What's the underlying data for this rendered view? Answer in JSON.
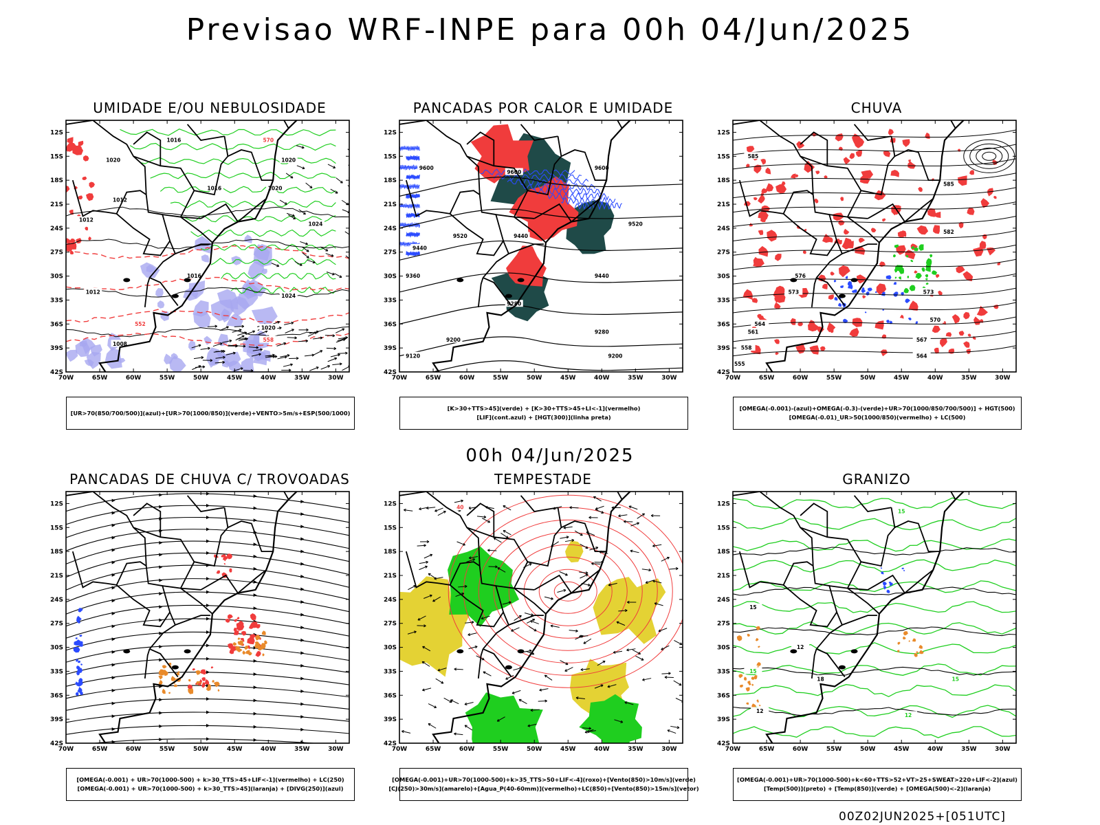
{
  "header": {
    "title": "Previsao WRF-INPE  para 00h 04/Jun/2025"
  },
  "middle": {
    "date": "00h 04/Jun/2025"
  },
  "footer": {
    "run_id": "00Z02JUN2025+[051UTC]"
  },
  "axes": {
    "lat_labels": [
      "12S",
      "15S",
      "18S",
      "21S",
      "24S",
      "27S",
      "30S",
      "33S",
      "36S",
      "39S",
      "42S"
    ],
    "lon_labels": [
      "70W",
      "65W",
      "60W",
      "55W",
      "50W",
      "45W",
      "40W",
      "35W",
      "30W"
    ]
  },
  "colors": {
    "red": "#f03c3c",
    "green": "#1fce1f",
    "blue": "#2b4bff",
    "dark": "#1f4a48",
    "yellow": "#e4d234",
    "orange": "#e98a2a",
    "lavender": "#a8a8f0"
  },
  "panels": [
    {
      "id": "umidade",
      "title": "UMIDADE E/OU NEBULOSIDADE",
      "legend": [
        "[UR>70(850/700/500)](azul)+[UR>70(1000/850)](verde)+VENTO>5m/s+ESP(500/1000)"
      ],
      "contour_labels": [
        "1016",
        "1020",
        "1016",
        "1020",
        "1012",
        "1024",
        "1012",
        "1016",
        "1012",
        "1008",
        "1024",
        "1020",
        "1020",
        "552",
        "558",
        "570"
      ]
    },
    {
      "id": "pancadas",
      "title": "PANCADAS POR CALOR E UMIDADE",
      "legend": [
        "[K>30+TTS>45](verde) + [K>30+TTS>45+LI<-1](vermelho)",
        "[LIF](cont.azul) + [HGT(300)](linha preta)"
      ],
      "contour_labels": [
        "9600",
        "9600",
        "9520",
        "9440",
        "9360",
        "9280",
        "9200",
        "9120",
        "9520",
        "9440",
        "9280",
        "9200",
        "9600",
        "9440"
      ]
    },
    {
      "id": "chuva",
      "title": "CHUVA",
      "legend": [
        "[OMEGA(-0.001)-(azul)+OMEGA(-0.3)-(verde)+UR>70(1000/850/700/500)] + HGT(500)",
        "[OMEGA(-0.01)_UR>50(1000/850)(vermelho) + LC(500)"
      ],
      "contour_labels": [
        "585",
        "585",
        "582",
        "576",
        "573",
        "570",
        "567",
        "564",
        "561",
        "558",
        "555",
        "564",
        "573"
      ]
    },
    {
      "id": "trovoadas",
      "title": "PANCADAS DE CHUVA C/ TROVOADAS",
      "legend": [
        "[OMEGA(-0.001) + UR>70(1000-500) + k>30_TTS>45+LIF<-1](vermelho) + LC(250)",
        "[OMEGA(-0.001) + UR>70(1000-500) + k>30_TTS>45](laranja) + [DIVG(250)](azul)"
      ],
      "contour_labels": []
    },
    {
      "id": "tempestade",
      "title": "TEMPESTADE",
      "legend": [
        "[OMEGA(-0.001)+UR>70(1000-500)+k>35_TTS>50+LIF<-4](roxo)+[Vento(850)>10m/s](verde)",
        "[CJ(250)>30m/s](amarelo)+[Agua_P(40-60mm)](vermelho)+LC(850)+[Vento(850)>15m/s](vetor)"
      ],
      "contour_labels": [
        "40"
      ]
    },
    {
      "id": "granizo",
      "title": "GRANIZO",
      "legend": [
        "[OMEGA(-0.001)+UR>70(1000-500)+k<60+TTS>52+VT>25+SWEAT>220+LIF<-2](azul)",
        "[Temp(500)](preto) + [Temp(850)](verde) + [OMEGA(500)<-2](laranja)"
      ],
      "contour_labels": [
        "15",
        "12",
        "15",
        "18",
        "15",
        "12",
        "12",
        "15"
      ]
    }
  ]
}
